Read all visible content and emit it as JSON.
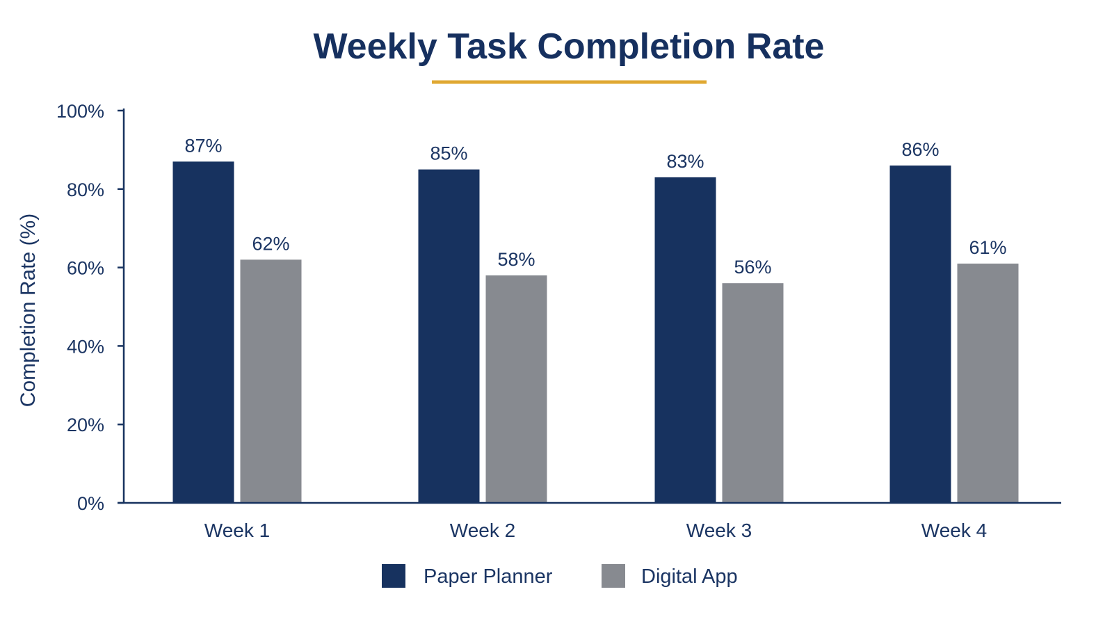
{
  "chart_data": {
    "type": "bar",
    "title": "Weekly Task Completion Rate",
    "xlabel": "",
    "ylabel": "Completion Rate (%)",
    "ylim": [
      0,
      100
    ],
    "yticks": [
      "0%",
      "20%",
      "40%",
      "60%",
      "80%",
      "100%"
    ],
    "ytick_values": [
      0,
      20,
      40,
      60,
      80,
      100
    ],
    "categories": [
      "Week 1",
      "Week 2",
      "Week 3",
      "Week 4"
    ],
    "series": [
      {
        "name": "Paper Planner",
        "color": "#17325f",
        "values": [
          87,
          85,
          83,
          86
        ],
        "labels": [
          "87%",
          "85%",
          "83%",
          "86%"
        ]
      },
      {
        "name": "Digital App",
        "color": "#878a90",
        "values": [
          62,
          58,
          56,
          61
        ],
        "labels": [
          "62%",
          "58%",
          "56%",
          "61%"
        ]
      }
    ],
    "grid": false,
    "legend_position": "bottom-center",
    "accent_color": "#e0a832",
    "axis_color": "#17325f"
  }
}
